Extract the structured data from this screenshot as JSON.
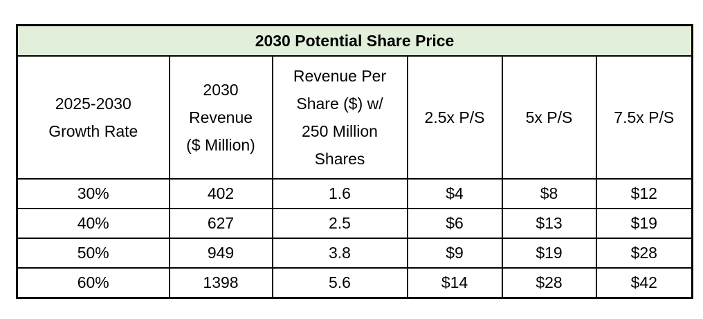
{
  "table": {
    "title": "2030 Potential Share Price",
    "headers": [
      [
        "2025-2030",
        "Growth Rate"
      ],
      [
        "2030",
        "Revenue",
        "($ Million)"
      ],
      [
        "Revenue Per",
        "Share ($) w/",
        "250 Million",
        "Shares"
      ],
      [
        "2.5x P/S"
      ],
      [
        "5x P/S"
      ],
      [
        "7.5x P/S"
      ]
    ],
    "rows": [
      [
        "30%",
        "402",
        "1.6",
        "$4",
        "$8",
        "$12"
      ],
      [
        "40%",
        "627",
        "2.5",
        "$6",
        "$13",
        "$19"
      ],
      [
        "50%",
        "949",
        "3.8",
        "$9",
        "$19",
        "$28"
      ],
      [
        "60%",
        "1398",
        "5.6",
        "$14",
        "$28",
        "$42"
      ]
    ]
  }
}
